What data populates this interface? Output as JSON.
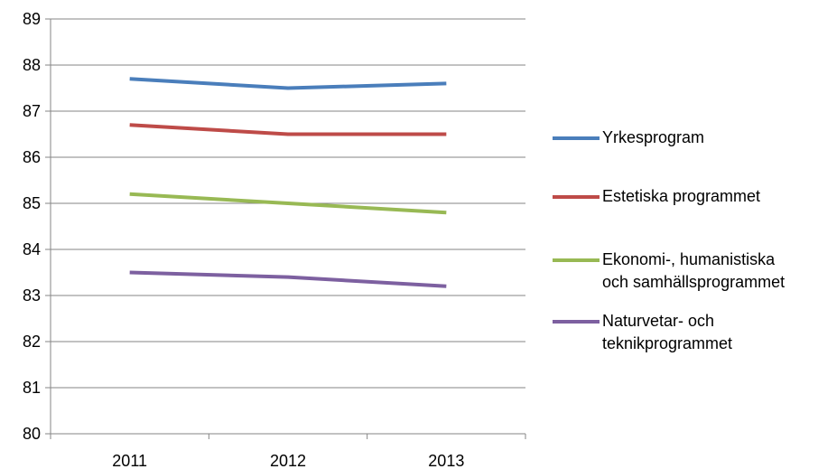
{
  "chart_data": {
    "type": "line",
    "categories": [
      "2011",
      "2012",
      "2013"
    ],
    "ylim": [
      80,
      89
    ],
    "yticks": [
      80,
      81,
      82,
      83,
      84,
      85,
      86,
      87,
      88,
      89
    ],
    "grid": true,
    "legend_position": "right",
    "series": [
      {
        "name": "Yrkesprogram",
        "values": [
          87.7,
          87.5,
          87.6
        ],
        "color": "#4a7ebb"
      },
      {
        "name": "Estetiska programmet",
        "values": [
          86.7,
          86.5,
          86.5
        ],
        "color": "#be4b48"
      },
      {
        "name": "Ekonomi-, humanistiska\noch samhällsprogrammet",
        "values": [
          85.2,
          85.0,
          84.8
        ],
        "color": "#98b954"
      },
      {
        "name": "Naturvetar- och\nteknikprogrammet",
        "values": [
          83.5,
          83.4,
          83.2
        ],
        "color": "#7d60a0"
      }
    ]
  }
}
